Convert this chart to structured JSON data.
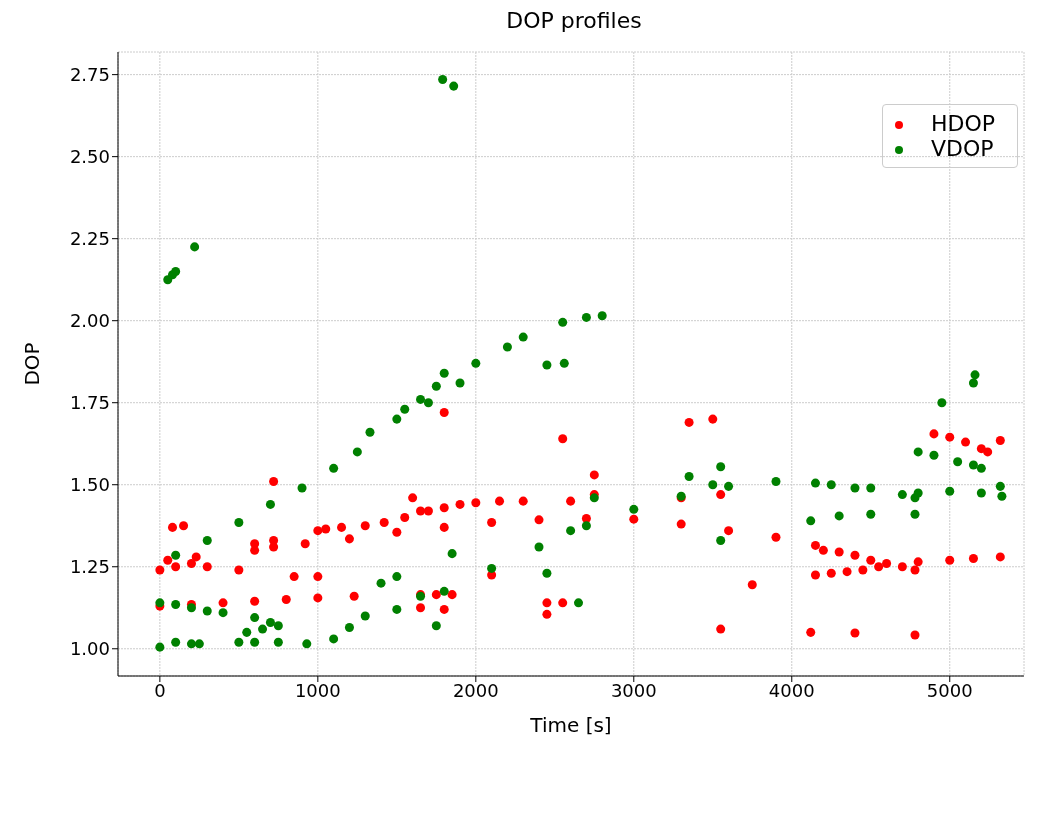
{
  "chart_data": {
    "type": "scatter",
    "title": "DOP profiles",
    "xlabel": "Time [s]",
    "ylabel": "DOP",
    "xlim": [
      -265,
      5470
    ],
    "ylim": [
      0.917,
      2.819
    ],
    "xticks": [
      0,
      1000,
      2000,
      3000,
      4000,
      5000
    ],
    "yticks": [
      {
        "value": 1,
        "label": "1.00"
      },
      {
        "value": 1.25,
        "label": "1.25"
      },
      {
        "value": 1.5,
        "label": "1.50"
      },
      {
        "value": 1.75,
        "label": "1.75"
      },
      {
        "value": 2,
        "label": "2.00"
      },
      {
        "value": 2.25,
        "label": "2.25"
      },
      {
        "value": 2.5,
        "label": "2.50"
      },
      {
        "value": 2.75,
        "label": "2.75"
      }
    ],
    "grid": true,
    "legend": "top right",
    "marker": "circle",
    "series": [
      {
        "name": "HDOP",
        "color": "#ff0000",
        "x": [
          0,
          200,
          400,
          600,
          800,
          1000,
          1230,
          1200,
          1500,
          1800,
          2100,
          2400,
          2700,
          3000,
          3300,
          3600,
          3900,
          4150,
          4200,
          4300,
          4400,
          4500,
          4600,
          4700,
          4780,
          4800,
          5000,
          5150,
          5320,
          4120,
          4400,
          4780,
          4150,
          4250,
          4350,
          4450,
          4550,
          0,
          50,
          80,
          150,
          100,
          200,
          230,
          300,
          500,
          600,
          600,
          720,
          720,
          720,
          920,
          1000,
          1050,
          1150,
          1300,
          1420,
          1550,
          1600,
          1650,
          1800,
          1900,
          2000,
          2150,
          2300,
          1800,
          1650,
          1750,
          1850,
          1650,
          1800,
          2550,
          2450,
          2450,
          2550,
          2600,
          2750,
          2750,
          3350,
          3500,
          3550,
          3750,
          3300,
          3550,
          4900,
          5000,
          5100,
          5200,
          5240,
          5320,
          1700,
          2100,
          1000,
          850
        ],
        "values": [
          1.13,
          1.135,
          1.14,
          1.145,
          1.15,
          1.155,
          1.16,
          1.335,
          1.355,
          1.37,
          1.385,
          1.393,
          1.397,
          1.395,
          1.38,
          1.36,
          1.34,
          1.315,
          1.3,
          1.295,
          1.285,
          1.27,
          1.26,
          1.25,
          1.24,
          1.265,
          1.27,
          1.275,
          1.28,
          1.05,
          1.048,
          1.042,
          1.225,
          1.23,
          1.235,
          1.24,
          1.25,
          1.24,
          1.27,
          1.37,
          1.375,
          1.25,
          1.26,
          1.28,
          1.25,
          1.24,
          1.32,
          1.3,
          1.33,
          1.31,
          1.51,
          1.32,
          1.36,
          1.365,
          1.37,
          1.375,
          1.385,
          1.4,
          1.46,
          1.42,
          1.43,
          1.44,
          1.445,
          1.45,
          1.45,
          1.72,
          1.165,
          1.165,
          1.165,
          1.125,
          1.12,
          1.64,
          1.14,
          1.105,
          1.14,
          1.45,
          1.53,
          1.47,
          1.69,
          1.7,
          1.06,
          1.195,
          1.46,
          1.47,
          1.655,
          1.645,
          1.63,
          1.61,
          1.6,
          1.635,
          1.42,
          1.225,
          1.22,
          1.22
        ]
      },
      {
        "name": "VDOP",
        "color": "#008000",
        "x": [
          100,
          300,
          500,
          700,
          900,
          1100,
          1250,
          1330,
          1500,
          1700,
          1900,
          2000,
          2200,
          2300,
          2550,
          2700,
          2800,
          1550,
          1650,
          1750,
          1200,
          1500,
          1800,
          2100,
          2400,
          2700,
          3000,
          3300,
          3600,
          3900,
          4150,
          4250,
          4400,
          4500,
          4700,
          4780,
          4120,
          4300,
          4500,
          4780,
          4800,
          5000,
          5200,
          5330,
          0,
          100,
          200,
          250,
          500,
          600,
          750,
          930,
          1100,
          0,
          100,
          200,
          300,
          400,
          600,
          700,
          750,
          550,
          650,
          1300,
          1400,
          1500,
          1650,
          1750,
          1850,
          2450,
          2600,
          2650,
          50,
          80,
          100,
          220,
          1790,
          1860,
          2450,
          2560,
          1800,
          3350,
          3550,
          3550,
          3500,
          2750,
          4950,
          5150,
          5160,
          4800,
          4900,
          5050,
          5150,
          5200,
          5320
        ],
        "values": [
          1.285,
          1.33,
          1.385,
          1.44,
          1.49,
          1.55,
          1.6,
          1.66,
          1.7,
          1.75,
          1.81,
          1.87,
          1.92,
          1.95,
          1.995,
          2.01,
          2.015,
          1.73,
          1.76,
          1.8,
          1.065,
          1.12,
          1.175,
          1.245,
          1.31,
          1.375,
          1.425,
          1.465,
          1.495,
          1.51,
          1.505,
          1.5,
          1.49,
          1.49,
          1.47,
          1.46,
          1.39,
          1.405,
          1.41,
          1.41,
          1.475,
          1.48,
          1.475,
          1.465,
          1.005,
          1.02,
          1.015,
          1.015,
          1.02,
          1.02,
          1.02,
          1.015,
          1.03,
          1.14,
          1.135,
          1.125,
          1.115,
          1.11,
          1.095,
          1.08,
          1.07,
          1.05,
          1.06,
          1.1,
          1.2,
          1.22,
          1.16,
          1.07,
          1.29,
          1.23,
          1.36,
          1.14,
          2.125,
          2.14,
          2.15,
          2.225,
          2.735,
          2.715,
          1.865,
          1.87,
          1.84,
          1.525,
          1.33,
          1.555,
          1.5,
          1.46,
          1.75,
          1.81,
          1.835,
          1.6,
          1.59,
          1.57,
          1.56,
          1.55,
          1.495
        ]
      }
    ]
  }
}
